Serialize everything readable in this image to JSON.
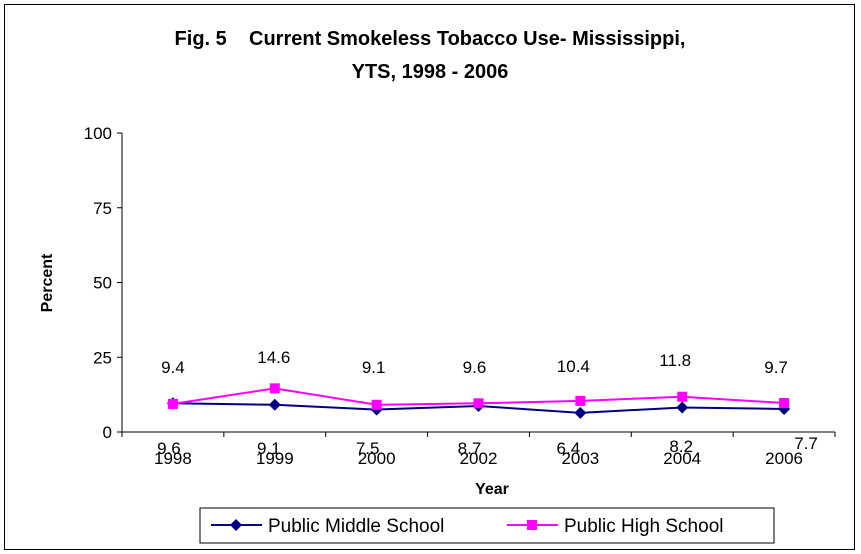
{
  "chart_data": {
    "type": "line",
    "title_line1": "Fig. 5    Current Smokeless Tobacco Use- Mississippi,",
    "title_line2": "YTS, 1998 - 2006",
    "xlabel": "Year",
    "ylabel": "Percent",
    "ylim": [
      0,
      100
    ],
    "yticks": [
      "0",
      "25",
      "50",
      "75",
      "100"
    ],
    "categories": [
      "1998",
      "1999",
      "2000",
      "2002",
      "2003",
      "2004",
      "2006"
    ],
    "grid": false,
    "legend_position": "bottom",
    "series": [
      {
        "name": "Public Middle School",
        "values": [
          9.6,
          9.1,
          7.5,
          8.7,
          6.4,
          8.2,
          7.7
        ],
        "labels": [
          "9.6",
          "9.1",
          "7.5",
          "8.7",
          "6.4",
          "8.2",
          "7.7"
        ],
        "color": "#000080",
        "marker": "diamond"
      },
      {
        "name": "Public High School",
        "values": [
          9.4,
          14.6,
          9.1,
          9.6,
          10.4,
          11.8,
          9.7
        ],
        "labels": [
          "9.4",
          "14.6",
          "9.1",
          "9.6",
          "10.4",
          "11.8",
          "9.7"
        ],
        "color": "#FF00FF",
        "marker": "square"
      }
    ]
  }
}
